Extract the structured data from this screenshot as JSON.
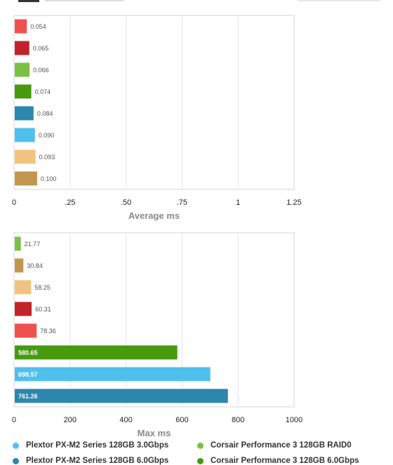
{
  "colors": {
    "plextor_30": "#4fc0ec",
    "plextor_60": "#2c87ac",
    "corsair_raid0": "#7ac143",
    "corsair_60": "#479a0e",
    "red_light": "#ef5151",
    "red_dark": "#c0242a",
    "tan_light": "#f0c480",
    "tan_dark": "#c3964f"
  },
  "chart_data": [
    {
      "type": "bar",
      "orientation": "horizontal",
      "xlabel": "Average ms",
      "xlim": [
        0,
        1.25
      ],
      "tick_labels": [
        "0",
        ".25",
        ".50",
        ".75",
        "1",
        "1.25"
      ],
      "grid": true,
      "series": [
        {
          "value": 0.054,
          "label": "0.054",
          "color": "#ef5151"
        },
        {
          "value": 0.065,
          "label": "0.065",
          "color": "#c0242a"
        },
        {
          "value": 0.066,
          "label": "0.066",
          "color": "#7ac143",
          "name": "Corsair Performance 3 128GB RAID0"
        },
        {
          "value": 0.074,
          "label": "0.074",
          "color": "#479a0e",
          "name": "Corsair Performance 3 128GB 6.0Gbps"
        },
        {
          "value": 0.084,
          "label": "0.084",
          "color": "#2c87ac",
          "name": "Plextor PX-M2 Series 128GB 6.0Gbps"
        },
        {
          "value": 0.09,
          "label": "0.090",
          "color": "#4fc0ec",
          "name": "Plextor PX-M2 Series 128GB 3.0Gbps"
        },
        {
          "value": 0.093,
          "label": "0.093",
          "color": "#f0c480"
        },
        {
          "value": 0.1,
          "label": "0.100",
          "color": "#c3964f"
        }
      ]
    },
    {
      "type": "bar",
      "orientation": "horizontal",
      "xlabel": "Max ms",
      "xlim": [
        0,
        1000
      ],
      "tick_labels": [
        "0",
        "200",
        "400",
        "600",
        "800",
        "1000"
      ],
      "grid": true,
      "series": [
        {
          "value": 21.77,
          "label": "21.77",
          "color": "#7ac143",
          "name": "Corsair Performance 3 128GB RAID0"
        },
        {
          "value": 30.84,
          "label": "30.84",
          "color": "#c3964f"
        },
        {
          "value": 58.25,
          "label": "58.25",
          "color": "#f0c480"
        },
        {
          "value": 60.31,
          "label": "60.31",
          "color": "#c0242a"
        },
        {
          "value": 78.36,
          "label": "78.36",
          "color": "#ef5151"
        },
        {
          "value": 580.65,
          "label": "580.65",
          "color": "#479a0e",
          "name": "Corsair Performance 3 128GB 6.0Gbps"
        },
        {
          "value": 698.57,
          "label": "698.57",
          "color": "#4fc0ec",
          "name": "Plextor PX-M2 Series 128GB 3.0Gbps"
        },
        {
          "value": 761.26,
          "label": "761.26",
          "color": "#2c87ac",
          "name": "Plextor PX-M2 Series 128GB 6.0Gbps"
        }
      ]
    }
  ],
  "legend": [
    {
      "label": "Plextor PX-M2 Series 128GB 3.0Gbps",
      "color": "#4fc0ec"
    },
    {
      "label": "Corsair Performance 3 128GB RAID0",
      "color": "#7ac143"
    },
    {
      "label": "Plextor PX-M2 Series 128GB 6.0Gbps",
      "color": "#2c87ac"
    },
    {
      "label": "Corsair Performance 3 128GB 6.0Gbps",
      "color": "#479a0e"
    }
  ]
}
